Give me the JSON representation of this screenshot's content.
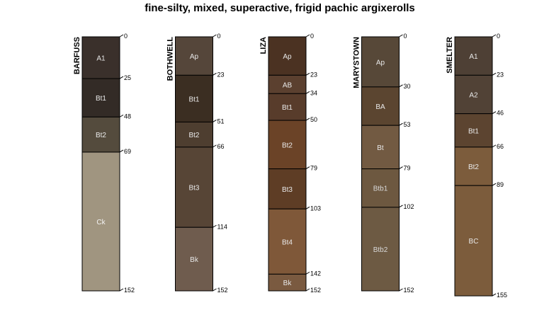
{
  "chart_data": {
    "type": "soil-profile-sketch",
    "title": "fine-silty, mixed, superactive, frigid pachic argixerolls",
    "depth_unit": "cm",
    "ylim": [
      0,
      155
    ],
    "profiles": [
      {
        "name": "BARFUSS",
        "horizons": [
          {
            "name": "A1",
            "top": 0,
            "bottom": 25,
            "color": "#3a302b",
            "label_color": "#e8e8e8"
          },
          {
            "name": "Bt1",
            "top": 25,
            "bottom": 48,
            "color": "#332b26",
            "label_color": "#e8e8e8"
          },
          {
            "name": "Bt2",
            "top": 48,
            "bottom": 69,
            "color": "#544b3d",
            "label_color": "#e8e8e8"
          },
          {
            "name": "Ck",
            "top": 69,
            "bottom": 152,
            "color": "#a09580",
            "label_color": "#f4f4f4"
          }
        ]
      },
      {
        "name": "BOTHWELL",
        "horizons": [
          {
            "name": "Ap",
            "top": 0,
            "bottom": 23,
            "color": "#55463a",
            "label_color": "#e8e8e8"
          },
          {
            "name": "Bt1",
            "top": 23,
            "bottom": 51,
            "color": "#3b2e22",
            "label_color": "#e8e8e8"
          },
          {
            "name": "Bt2",
            "top": 51,
            "bottom": 66,
            "color": "#4e3e30",
            "label_color": "#e8e8e8"
          },
          {
            "name": "Bt3",
            "top": 66,
            "bottom": 114,
            "color": "#574536",
            "label_color": "#e8e8e8"
          },
          {
            "name": "Bk",
            "top": 114,
            "bottom": 152,
            "color": "#6f5c4e",
            "label_color": "#e8e8e8"
          }
        ]
      },
      {
        "name": "LIZA",
        "horizons": [
          {
            "name": "Ap",
            "top": 0,
            "bottom": 23,
            "color": "#4b3222",
            "label_color": "#e8e8e8"
          },
          {
            "name": "AB",
            "top": 23,
            "bottom": 34,
            "color": "#5b402f",
            "label_color": "#e8e8e8"
          },
          {
            "name": "Bt1",
            "top": 34,
            "bottom": 50,
            "color": "#583c2b",
            "label_color": "#e8e8e8"
          },
          {
            "name": "Bt2",
            "top": 50,
            "bottom": 79,
            "color": "#6b4327",
            "label_color": "#e8e8e8"
          },
          {
            "name": "Bt3",
            "top": 79,
            "bottom": 103,
            "color": "#5e3d25",
            "label_color": "#e8e8e8"
          },
          {
            "name": "Bt4",
            "top": 103,
            "bottom": 142,
            "color": "#7f5839",
            "label_color": "#e8e8e8"
          },
          {
            "name": "Bk",
            "top": 142,
            "bottom": 152,
            "color": "#7a5a40",
            "label_color": "#e8e8e8"
          }
        ]
      },
      {
        "name": "MARYSTOWN",
        "horizons": [
          {
            "name": "Ap",
            "top": 0,
            "bottom": 30,
            "color": "#574838",
            "label_color": "#e8e8e8"
          },
          {
            "name": "BA",
            "top": 30,
            "bottom": 53,
            "color": "#5b4530",
            "label_color": "#e8e8e8"
          },
          {
            "name": "Bt",
            "top": 53,
            "bottom": 79,
            "color": "#725a42",
            "label_color": "#e8e8e8"
          },
          {
            "name": "Btb1",
            "top": 79,
            "bottom": 102,
            "color": "#6d5840",
            "label_color": "#d8d8d8"
          },
          {
            "name": "Btb2",
            "top": 102,
            "bottom": 152,
            "color": "#6d5a43",
            "label_color": "#d8d8d8"
          }
        ]
      },
      {
        "name": "SMELTER",
        "horizons": [
          {
            "name": "A1",
            "top": 0,
            "bottom": 23,
            "color": "#4e4035",
            "label_color": "#e8e8e8"
          },
          {
            "name": "A2",
            "top": 23,
            "bottom": 46,
            "color": "#514236",
            "label_color": "#e8e8e8"
          },
          {
            "name": "Bt1",
            "top": 46,
            "bottom": 66,
            "color": "#5c4430",
            "label_color": "#e8e8e8"
          },
          {
            "name": "Bt2",
            "top": 66,
            "bottom": 89,
            "color": "#7c5c3c",
            "label_color": "#e8e8e8"
          },
          {
            "name": "BC",
            "top": 89,
            "bottom": 155,
            "color": "#7c5c3c",
            "label_color": "#e8e8e8"
          }
        ]
      }
    ]
  }
}
